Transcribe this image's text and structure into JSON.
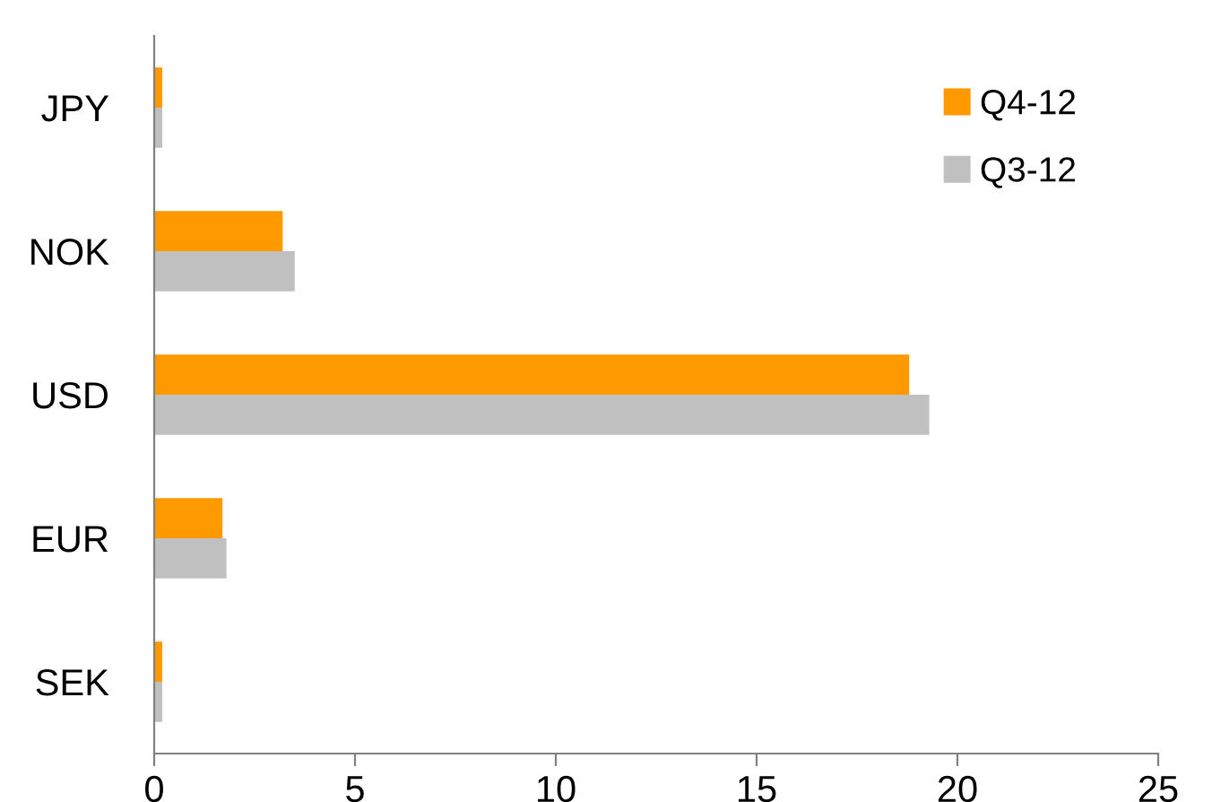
{
  "chart_data": {
    "type": "bar",
    "orientation": "horizontal",
    "categories": [
      "JPY",
      "NOK",
      "USD",
      "EUR",
      "SEK"
    ],
    "series": [
      {
        "name": "Q4-12",
        "color": "#ff9900",
        "values": [
          0.2,
          3.2,
          18.8,
          1.7,
          0.2
        ]
      },
      {
        "name": "Q3-12",
        "color": "#c0c0c0",
        "values": [
          0.2,
          3.5,
          19.3,
          1.8,
          0.2
        ]
      }
    ],
    "xlim": [
      0,
      25
    ],
    "xticks": [
      0,
      5,
      10,
      15,
      20,
      25
    ],
    "grid": false,
    "legend": "top right"
  }
}
